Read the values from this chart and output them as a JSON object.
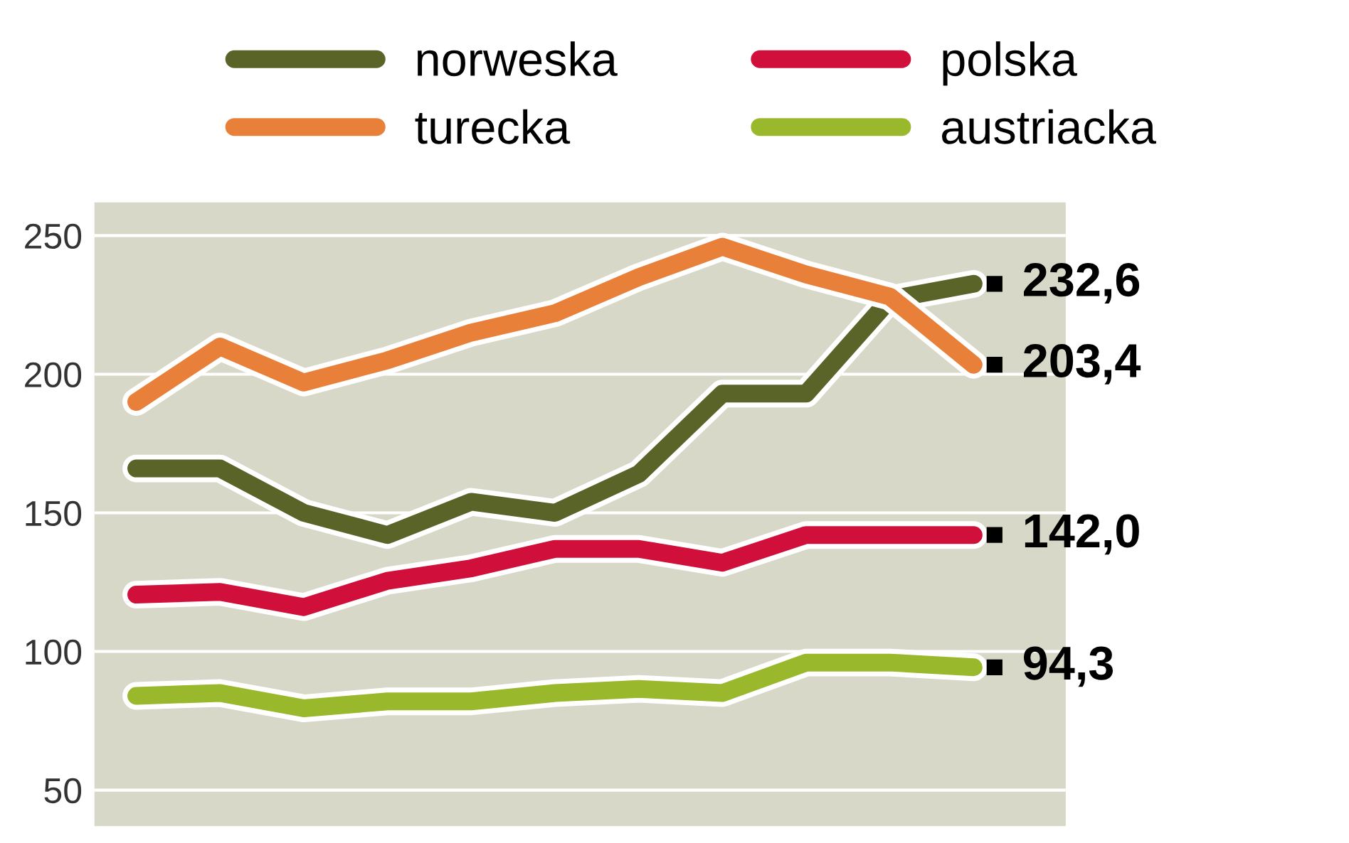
{
  "chart_data": {
    "type": "line",
    "categories": [
      null,
      null,
      null,
      null,
      null,
      null,
      null,
      null,
      null,
      null,
      null
    ],
    "series": [
      {
        "name": "norweska",
        "color": "#5a6428",
        "values": [
          166,
          166,
          150,
          142,
          154,
          150,
          164,
          193,
          193,
          227,
          232.6
        ],
        "value_labels": [
          null,
          null,
          null,
          null,
          null,
          null,
          null,
          null,
          null,
          null,
          "232,6"
        ]
      },
      {
        "name": "turecka",
        "color": "#e8803a",
        "values": [
          190,
          210,
          197,
          205,
          215,
          222,
          235,
          246,
          236,
          228,
          203.4
        ],
        "value_labels": [
          null,
          null,
          null,
          null,
          null,
          null,
          null,
          null,
          null,
          null,
          "203,4"
        ]
      },
      {
        "name": "polska",
        "color": "#d0103a",
        "values": [
          120.5,
          121.5,
          116,
          125.5,
          130,
          137,
          137,
          132,
          142,
          142,
          142.0
        ],
        "value_labels": [
          null,
          null,
          null,
          null,
          null,
          null,
          null,
          null,
          null,
          null,
          "142,0"
        ]
      },
      {
        "name": "austriacka",
        "color": "#9ab82c",
        "values": [
          84,
          85,
          79.5,
          82,
          82,
          85,
          86.5,
          85,
          96,
          96,
          94.3
        ],
        "value_labels": [
          null,
          null,
          null,
          null,
          null,
          null,
          null,
          null,
          null,
          null,
          "94,3"
        ]
      }
    ],
    "ylim": [
      37,
      262
    ],
    "yticks": [
      50,
      100,
      150,
      200,
      250
    ],
    "grid": "y",
    "legend": "top",
    "marker": "none",
    "line_style": "solid"
  }
}
